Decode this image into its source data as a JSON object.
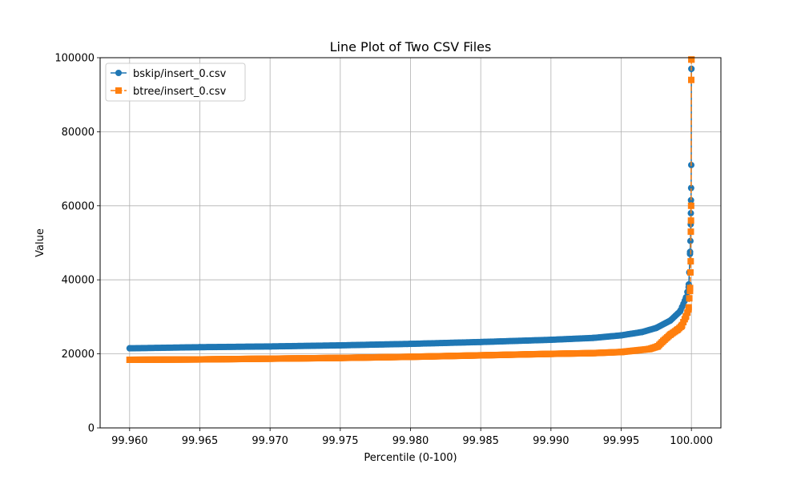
{
  "chart_data": {
    "type": "line",
    "title": "Line Plot of Two CSV Files",
    "xlabel": "Percentile (0-100)",
    "ylabel": "Value",
    "xlim": [
      99.9579,
      100.0021
    ],
    "ylim": [
      0,
      100000
    ],
    "x_ticks": [
      99.96,
      99.965,
      99.97,
      99.975,
      99.98,
      99.985,
      99.99,
      99.995,
      100.0
    ],
    "x_tick_labels": [
      "99.960",
      "99.965",
      "99.970",
      "99.975",
      "99.980",
      "99.985",
      "99.990",
      "99.995",
      "100.000"
    ],
    "y_ticks": [
      0,
      20000,
      40000,
      60000,
      80000,
      100000
    ],
    "y_tick_labels": [
      "0",
      "20000",
      "40000",
      "60000",
      "80000",
      "100000"
    ],
    "grid": true,
    "legend_position": "top-left",
    "series": [
      {
        "name": "bskip/insert_0.csv",
        "color": "#1f77b4",
        "marker": "circle",
        "line_style": "solid",
        "points": [
          [
            99.96,
            21500
          ],
          [
            99.965,
            21800
          ],
          [
            99.97,
            22000
          ],
          [
            99.975,
            22300
          ],
          [
            99.98,
            22700
          ],
          [
            99.985,
            23200
          ],
          [
            99.99,
            23800
          ],
          [
            99.993,
            24300
          ],
          [
            99.995,
            25000
          ],
          [
            99.9965,
            25900
          ],
          [
            99.9975,
            27000
          ],
          [
            99.9985,
            29000
          ],
          [
            99.9992,
            31500
          ],
          [
            99.9996,
            35000
          ],
          [
            99.9998,
            38000
          ],
          [
            99.99985,
            42000
          ],
          [
            99.9999,
            47000
          ],
          [
            99.99993,
            50500
          ],
          [
            99.99995,
            55000
          ],
          [
            99.99996,
            58000
          ],
          [
            99.99997,
            61500
          ],
          [
            99.99998,
            64800
          ],
          [
            99.99999,
            71000
          ],
          [
            100.0,
            97000
          ]
        ]
      },
      {
        "name": "btree/insert_0.csv",
        "color": "#ff7f0e",
        "marker": "square",
        "line_style": "dashed",
        "points": [
          [
            99.96,
            18400
          ],
          [
            99.965,
            18500
          ],
          [
            99.97,
            18700
          ],
          [
            99.975,
            18900
          ],
          [
            99.98,
            19200
          ],
          [
            99.985,
            19600
          ],
          [
            99.99,
            20000
          ],
          [
            99.993,
            20200
          ],
          [
            99.995,
            20500
          ],
          [
            99.997,
            21300
          ],
          [
            99.9976,
            22000
          ],
          [
            99.998,
            23500
          ],
          [
            99.9985,
            25200
          ],
          [
            99.999,
            26500
          ],
          [
            99.9993,
            27500
          ],
          [
            99.9996,
            30000
          ],
          [
            99.9998,
            32000
          ],
          [
            99.99985,
            35000
          ],
          [
            99.9999,
            37000
          ],
          [
            99.99993,
            42000
          ],
          [
            99.99995,
            45000
          ],
          [
            99.99996,
            53000
          ],
          [
            99.99997,
            56000
          ],
          [
            99.99998,
            60000
          ],
          [
            99.99999,
            94000
          ],
          [
            100.0,
            99500
          ]
        ]
      }
    ]
  }
}
